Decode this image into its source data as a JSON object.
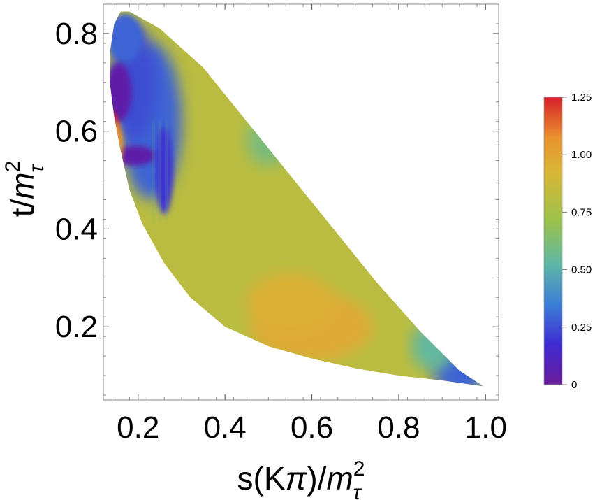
{
  "chart_data": {
    "type": "heatmap",
    "title": "",
    "xlabel": {
      "base": "s(K",
      "greek": "π",
      "close": ")/",
      "m": "m",
      "sup": "2",
      "sub": "τ"
    },
    "ylabel": {
      "base": "t/",
      "m": "m",
      "sup": "2",
      "sub": "τ"
    },
    "xlim": [
      0.12,
      1.03
    ],
    "ylim": [
      0.05,
      0.86
    ],
    "x_ticks": [
      "0.2",
      "0.4",
      "0.6",
      "0.8",
      "1.0"
    ],
    "x_tick_values": [
      0.2,
      0.4,
      0.6,
      0.8,
      1.0
    ],
    "y_ticks": [
      "0.2",
      "0.4",
      "0.6",
      "0.8"
    ],
    "y_tick_values": [
      0.2,
      0.4,
      0.6,
      0.8
    ],
    "region": {
      "description_shape": "Dalitz-like triangular domain",
      "boundary_points": [
        [
          0.135,
          0.76
        ],
        [
          0.145,
          0.82
        ],
        [
          0.16,
          0.845
        ],
        [
          0.18,
          0.845
        ],
        [
          0.25,
          0.81
        ],
        [
          0.35,
          0.73
        ],
        [
          0.45,
          0.62
        ],
        [
          0.55,
          0.51
        ],
        [
          0.65,
          0.4
        ],
        [
          0.75,
          0.29
        ],
        [
          0.85,
          0.19
        ],
        [
          0.94,
          0.11
        ],
        [
          0.995,
          0.078
        ],
        [
          0.9,
          0.09
        ],
        [
          0.8,
          0.1
        ],
        [
          0.7,
          0.115
        ],
        [
          0.6,
          0.135
        ],
        [
          0.5,
          0.16
        ],
        [
          0.4,
          0.2
        ],
        [
          0.32,
          0.26
        ],
        [
          0.26,
          0.33
        ],
        [
          0.21,
          0.41
        ],
        [
          0.18,
          0.48
        ],
        [
          0.16,
          0.56
        ],
        [
          0.145,
          0.63
        ],
        [
          0.135,
          0.7
        ]
      ],
      "features": [
        {
          "kind": "low-valley",
          "x": 0.155,
          "y": 0.68,
          "value": 0.05
        },
        {
          "kind": "low-valley",
          "x": 0.19,
          "y": 0.55,
          "value": 0.05
        },
        {
          "kind": "high-peak",
          "x": 0.14,
          "y": 0.6,
          "value": 1.25
        },
        {
          "kind": "low-band",
          "x": 0.255,
          "y": 0.55,
          "value": 0.25
        },
        {
          "kind": "high-region",
          "x": 0.6,
          "y": 0.2,
          "value": 0.95
        }
      ]
    },
    "colorbar": {
      "range": [
        0,
        1.25
      ],
      "ticks": [
        "1.25",
        "1.00",
        "0.75",
        "0.50",
        "0.25",
        "0"
      ],
      "tick_values": [
        1.25,
        1.0,
        0.75,
        0.5,
        0.25,
        0
      ],
      "colors": [
        "#6a1b9a",
        "#3f2bd1",
        "#3b7fd6",
        "#5fb7a6",
        "#9cc24a",
        "#d9b637",
        "#e8922e",
        "#d6202a"
      ]
    }
  }
}
